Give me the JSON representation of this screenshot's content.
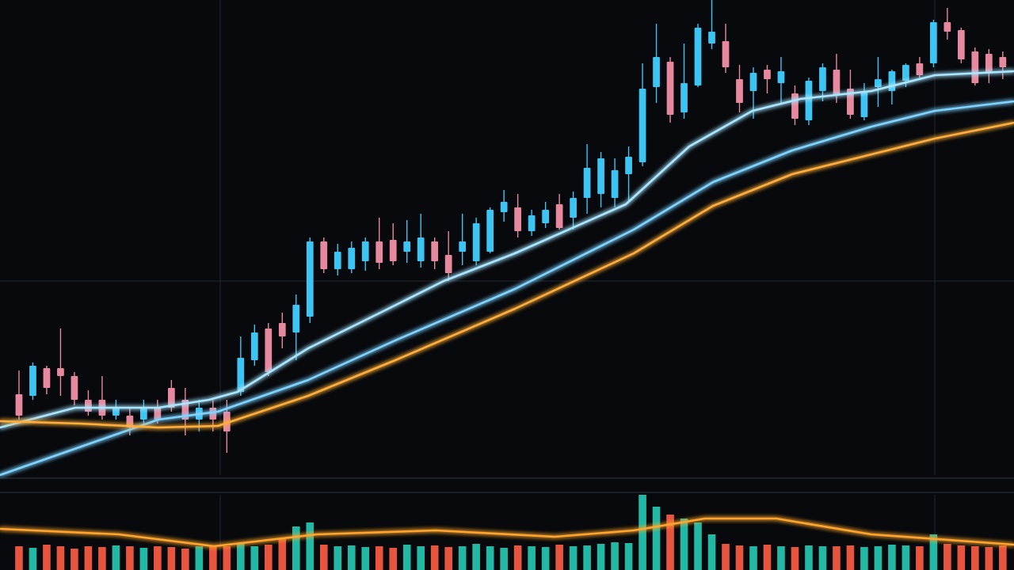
{
  "chart_data": [
    {
      "type": "candlestick",
      "xlim": [
        -1.37,
        71.81
      ],
      "ylim": [
        0,
        600
      ],
      "up_color": "#3cc4f2",
      "down_color": "#e7899e",
      "open": [
        102,
        100,
        135,
        135,
        125,
        95,
        95,
        75,
        75,
        70,
        85,
        110,
        95,
        70,
        85,
        80,
        105,
        145,
        185,
        192,
        180,
        200,
        295,
        260,
        260,
        270,
        295,
        297,
        282,
        270,
        295,
        278,
        282,
        270,
        282,
        332,
        338,
        308,
        318,
        342,
        325,
        350,
        355,
        350,
        380,
        395,
        490,
        522,
        458,
        492,
        545,
        548,
        500,
        485,
        512,
        495,
        482,
        448,
        485,
        512,
        488,
        452,
        490,
        485,
        498,
        520,
        520,
        572,
        562,
        535,
        532,
        528
      ],
      "high": [
        132,
        142,
        138,
        185,
        130,
        107,
        125,
        95,
        85,
        95,
        95,
        120,
        110,
        95,
        95,
        95,
        175,
        190,
        192,
        205,
        228,
        300,
        300,
        292,
        295,
        300,
        325,
        318,
        322,
        330,
        300,
        308,
        330,
        325,
        338,
        360,
        355,
        335,
        345,
        355,
        358,
        418,
        408,
        400,
        415,
        520,
        570,
        528,
        545,
        570,
        600,
        570,
        518,
        515,
        518,
        528,
        492,
        502,
        520,
        532,
        512,
        495,
        528,
        512,
        520,
        528,
        575,
        590,
        565,
        540,
        538,
        535
      ],
      "low": [
        70,
        95,
        102,
        100,
        88,
        75,
        70,
        70,
        50,
        60,
        65,
        80,
        50,
        55,
        55,
        28,
        100,
        138,
        125,
        160,
        145,
        192,
        255,
        252,
        255,
        258,
        260,
        265,
        268,
        262,
        260,
        245,
        265,
        265,
        280,
        320,
        300,
        302,
        312,
        310,
        310,
        330,
        338,
        338,
        345,
        390,
        470,
        445,
        450,
        490,
        538,
        508,
        458,
        450,
        482,
        470,
        442,
        442,
        472,
        470,
        450,
        448,
        465,
        468,
        490,
        502,
        515,
        550,
        520,
        492,
        495,
        500
      ],
      "close": [
        75,
        138,
        110,
        125,
        95,
        80,
        75,
        85,
        60,
        85,
        70,
        85,
        70,
        85,
        70,
        55,
        148,
        180,
        130,
        175,
        215,
        295,
        260,
        282,
        287,
        295,
        268,
        270,
        295,
        300,
        270,
        255,
        295,
        318,
        335,
        345,
        308,
        328,
        335,
        312,
        350,
        388,
        400,
        385,
        402,
        488,
        528,
        455,
        495,
        565,
        560,
        515,
        470,
        508,
        500,
        510,
        450,
        498,
        515,
        480,
        455,
        485,
        500,
        510,
        518,
        505,
        572,
        560,
        525,
        495,
        508,
        515
      ],
      "series": [
        {
          "color": "#a9e6ff",
          "x": [
            -1.37,
            4.06,
            10.06,
            13.72,
            15.78,
            20.87,
            26.07,
            30.65,
            35.79,
            43.8,
            48.37,
            52.94,
            56.38,
            61.52,
            66.1,
            71.81
          ],
          "values": [
            60,
            85,
            85,
            95,
            105,
            160,
            205,
            245,
            280,
            342,
            415,
            460,
            475,
            485,
            505,
            510
          ]
        },
        {
          "color": "#7fd4ff",
          "x": [
            -1.37,
            4.35,
            10.06,
            14.35,
            20.87,
            27.16,
            35.79,
            44.37,
            50.09,
            55.8,
            61.52,
            66.1,
            71.81
          ],
          "values": [
            0,
            35,
            70,
            80,
            120,
            170,
            235,
            310,
            370,
            410,
            440,
            460,
            472
          ]
        },
        {
          "color": "#ffad3b",
          "x": [
            -1.37,
            4.35,
            10.06,
            14.35,
            20.87,
            27.16,
            35.79,
            44.37,
            50.09,
            55.8,
            61.52,
            66.1,
            71.81
          ],
          "values": [
            68,
            65,
            60,
            62,
            100,
            145,
            210,
            280,
            340,
            380,
            405,
            425,
            445
          ]
        }
      ]
    },
    {
      "type": "volume",
      "xlim": [
        -1.37,
        71.81
      ],
      "ylim": [
        0,
        95
      ],
      "up_color": "#22b8a4",
      "down_color": "#e8553e",
      "values": [
        30,
        28,
        32,
        30,
        27,
        30,
        29,
        31,
        30,
        28,
        30,
        29,
        27,
        30,
        31,
        30,
        33,
        30,
        32,
        40,
        55,
        60,
        32,
        30,
        31,
        29,
        30,
        28,
        32,
        30,
        31,
        29,
        30,
        33,
        30,
        28,
        31,
        30,
        29,
        32,
        30,
        31,
        33,
        35,
        34,
        95,
        80,
        70,
        65,
        60,
        45,
        33,
        31,
        30,
        32,
        30,
        29,
        31,
        30,
        30,
        31,
        29,
        30,
        32,
        31,
        30,
        45,
        33,
        31,
        30,
        29,
        31
      ],
      "series": [
        {
          "color": "#ffa52e",
          "x": [
            -1.37,
            7.2,
            14.07,
            21.5,
            30.08,
            38.66,
            44.37,
            49.51,
            54.66,
            61.52,
            71.81
          ],
          "values": [
            52,
            45,
            30,
            45,
            50,
            42,
            50,
            65,
            65,
            45,
            32
          ]
        }
      ]
    }
  ]
}
